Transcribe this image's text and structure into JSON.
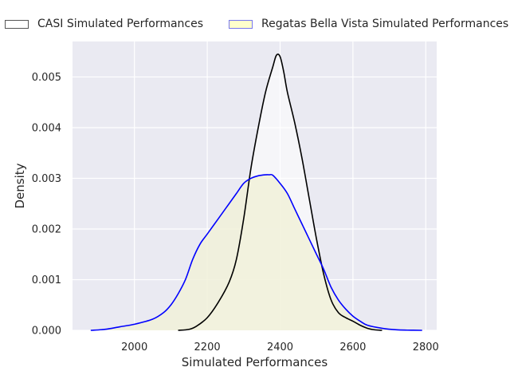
{
  "chart_data": {
    "type": "area",
    "title": "",
    "xlabel": "Simulated Performances",
    "ylabel": "Density",
    "xlim": [
      1830,
      2830
    ],
    "ylim": [
      0,
      0.0057
    ],
    "xticks": [
      2000,
      2200,
      2400,
      2600,
      2800
    ],
    "yticks": [
      0.0,
      0.001,
      0.002,
      0.003,
      0.004,
      0.005
    ],
    "ytick_labels": [
      "0.000",
      "0.001",
      "0.002",
      "0.003",
      "0.004",
      "0.005"
    ],
    "grid": true,
    "legend_position": "top",
    "series": [
      {
        "name": "CASI Simulated Performances",
        "line_color": "#000000",
        "fill_color": "#ffffff",
        "x": [
          2120,
          2150,
          2170,
          2200,
          2230,
          2260,
          2280,
          2300,
          2320,
          2340,
          2360,
          2380,
          2390,
          2400,
          2410,
          2420,
          2440,
          2460,
          2480,
          2500,
          2520,
          2540,
          2560,
          2580,
          2600,
          2620,
          2640,
          2660,
          2680
        ],
        "y": [
          0.0,
          2e-05,
          8e-05,
          0.00025,
          0.00055,
          0.00095,
          0.0014,
          0.0022,
          0.0032,
          0.004,
          0.0047,
          0.0052,
          0.00543,
          0.0054,
          0.0051,
          0.0047,
          0.0041,
          0.0034,
          0.0026,
          0.0018,
          0.0011,
          0.0006,
          0.00035,
          0.00025,
          0.00018,
          0.0001,
          4e-05,
          1e-05,
          0.0
        ]
      },
      {
        "name": "Regatas Bella Vista Simulated Performances",
        "line_color": "#0000ff",
        "fill_color": "#f1f1d9",
        "x": [
          1880,
          1920,
          1960,
          2000,
          2050,
          2080,
          2100,
          2120,
          2140,
          2160,
          2180,
          2200,
          2220,
          2240,
          2260,
          2280,
          2300,
          2320,
          2340,
          2360,
          2370,
          2380,
          2400,
          2420,
          2440,
          2460,
          2480,
          2500,
          2520,
          2540,
          2560,
          2580,
          2600,
          2620,
          2640,
          2680,
          2720,
          2760,
          2790
        ],
        "y": [
          0.0,
          2e-05,
          7e-05,
          0.00012,
          0.00022,
          0.00035,
          0.0005,
          0.00072,
          0.001,
          0.0014,
          0.0017,
          0.0019,
          0.0021,
          0.0023,
          0.0025,
          0.0027,
          0.0029,
          0.003,
          0.00305,
          0.00307,
          0.00307,
          0.00306,
          0.0029,
          0.0027,
          0.0024,
          0.0021,
          0.0018,
          0.0015,
          0.0012,
          0.00085,
          0.0006,
          0.00042,
          0.00028,
          0.00018,
          0.0001,
          4e-05,
          1e-05,
          3e-06,
          0.0
        ]
      }
    ]
  },
  "plot_style": {
    "background": "#eaeaf2",
    "grid_color": "#ffffff"
  }
}
